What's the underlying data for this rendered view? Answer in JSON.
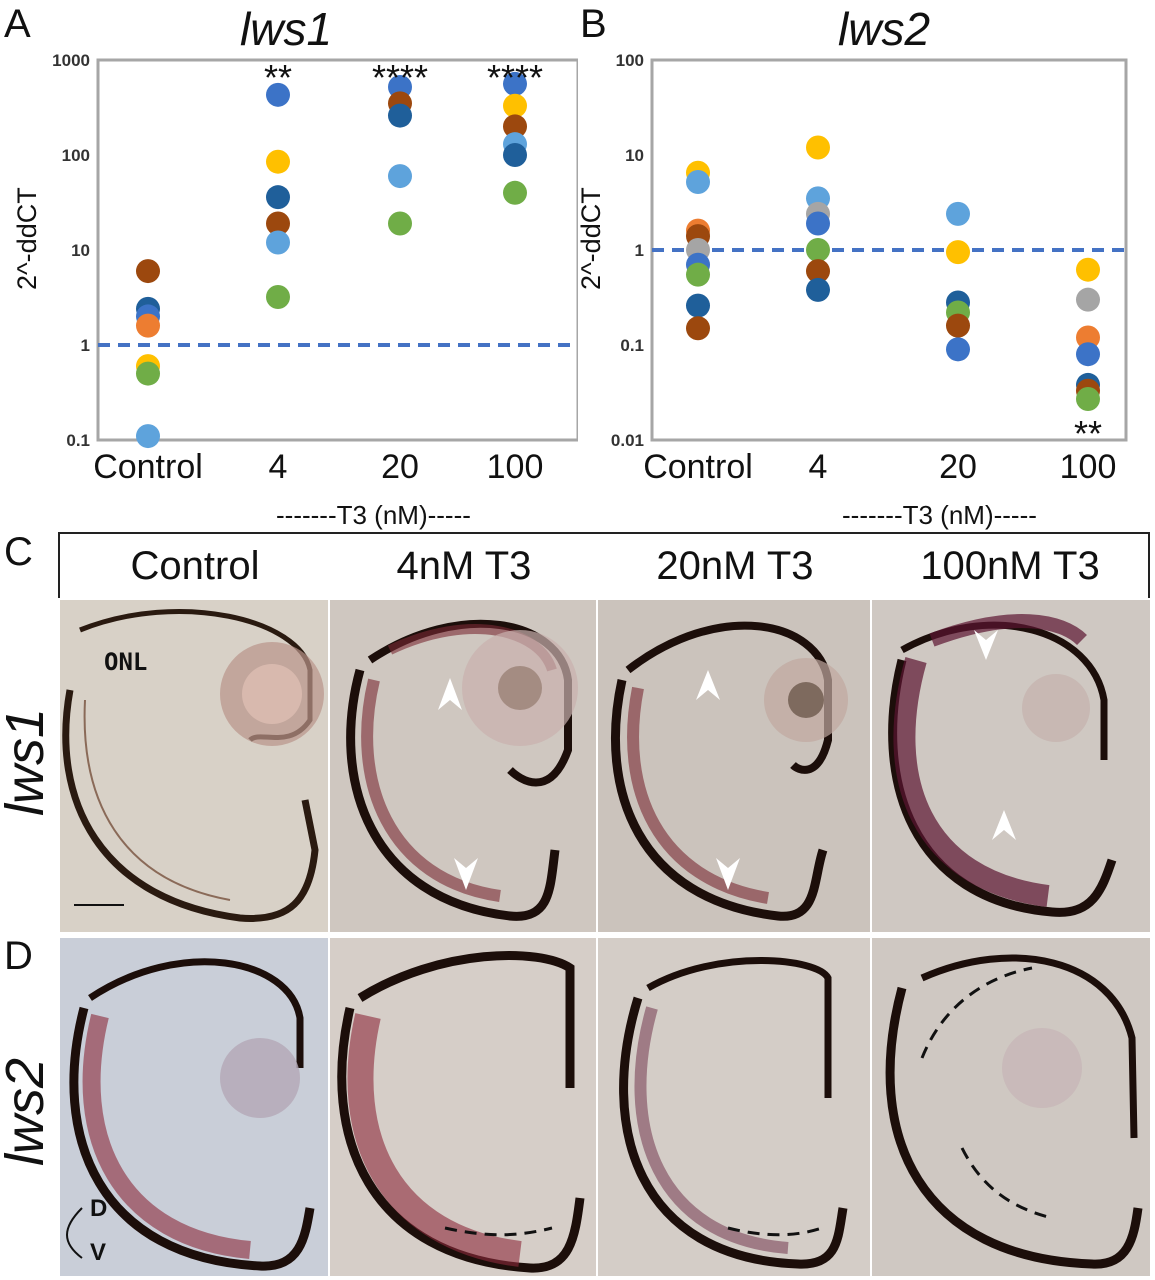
{
  "panels": {
    "A": {
      "letter": "A",
      "title": "lws1"
    },
    "B": {
      "letter": "B",
      "title": "lws2"
    },
    "C": {
      "letter": "C"
    },
    "D": {
      "letter": "D"
    }
  },
  "x_axis_group_label": "-------T3 (nM)-----",
  "column_headers": [
    "Control",
    "4nM T3",
    "20nM T3",
    "100nM T3"
  ],
  "row_labels": {
    "C": "lws1",
    "D": "lws2"
  },
  "image_annotations": {
    "onl": "ONL",
    "dv_dorsal": "D",
    "dv_ventral": "V"
  },
  "colors": {
    "blue_dark": "#1f5f9a",
    "blue_mid": "#3c73c7",
    "blue_light": "#5ea3dc",
    "orange": "#ed7d31",
    "brown": "#9c480e",
    "yellow": "#ffc000",
    "green": "#70ad47",
    "gray": "#a5a5a5",
    "dash": "#4472c4"
  },
  "chart_data": [
    {
      "type": "scatter",
      "title": "lws1",
      "ylabel": "2^-ddCT",
      "xlabel": "-------T3 (nM)-----",
      "yscale": "log",
      "ylim": [
        0.1,
        1000
      ],
      "yticks": [
        "1000",
        "100",
        "10",
        "1",
        "0.1"
      ],
      "categories": [
        "Control",
        "4",
        "20",
        "100"
      ],
      "reference_line": 1,
      "significance": [
        "",
        "**",
        "****",
        "****"
      ],
      "points": [
        {
          "x": "Control",
          "y": 6,
          "color": "#9c480e"
        },
        {
          "x": "Control",
          "y": 2.4,
          "color": "#1f5f9a"
        },
        {
          "x": "Control",
          "y": 2.0,
          "color": "#3c73c7"
        },
        {
          "x": "Control",
          "y": 1.6,
          "color": "#ed7d31"
        },
        {
          "x": "Control",
          "y": 0.6,
          "color": "#ffc000"
        },
        {
          "x": "Control",
          "y": 0.5,
          "color": "#70ad47"
        },
        {
          "x": "Control",
          "y": 0.11,
          "color": "#5ea3dc"
        },
        {
          "x": "4",
          "y": 430,
          "color": "#3c73c7"
        },
        {
          "x": "4",
          "y": 85,
          "color": "#ffc000"
        },
        {
          "x": "4",
          "y": 36,
          "color": "#1f5f9a"
        },
        {
          "x": "4",
          "y": 19,
          "color": "#9c480e"
        },
        {
          "x": "4",
          "y": 12,
          "color": "#5ea3dc"
        },
        {
          "x": "4",
          "y": 3.2,
          "color": "#70ad47"
        },
        {
          "x": "20",
          "y": 520,
          "color": "#3c73c7"
        },
        {
          "x": "20",
          "y": 350,
          "color": "#9c480e"
        },
        {
          "x": "20",
          "y": 260,
          "color": "#1f5f9a"
        },
        {
          "x": "20",
          "y": 60,
          "color": "#5ea3dc"
        },
        {
          "x": "20",
          "y": 19,
          "color": "#70ad47"
        },
        {
          "x": "100",
          "y": 560,
          "color": "#3c73c7"
        },
        {
          "x": "100",
          "y": 330,
          "color": "#ffc000"
        },
        {
          "x": "100",
          "y": 200,
          "color": "#9c480e"
        },
        {
          "x": "100",
          "y": 130,
          "color": "#5ea3dc"
        },
        {
          "x": "100",
          "y": 100,
          "color": "#1f5f9a"
        },
        {
          "x": "100",
          "y": 40,
          "color": "#70ad47"
        }
      ]
    },
    {
      "type": "scatter",
      "title": "lws2",
      "ylabel": "2^-ddCT",
      "xlabel": "-------T3 (nM)-----",
      "yscale": "log",
      "ylim": [
        0.01,
        100
      ],
      "yticks": [
        "100",
        "10",
        "1",
        "0.1",
        "0.01"
      ],
      "categories": [
        "Control",
        "4",
        "20",
        "100"
      ],
      "reference_line": 1,
      "significance": [
        "",
        "",
        "",
        "**"
      ],
      "points": [
        {
          "x": "Control",
          "y": 6.5,
          "color": "#ffc000"
        },
        {
          "x": "Control",
          "y": 5.2,
          "color": "#5ea3dc"
        },
        {
          "x": "Control",
          "y": 1.6,
          "color": "#ed7d31"
        },
        {
          "x": "Control",
          "y": 1.4,
          "color": "#9c480e"
        },
        {
          "x": "Control",
          "y": 1.0,
          "color": "#a5a5a5"
        },
        {
          "x": "Control",
          "y": 0.7,
          "color": "#3c73c7"
        },
        {
          "x": "Control",
          "y": 0.55,
          "color": "#70ad47"
        },
        {
          "x": "Control",
          "y": 0.26,
          "color": "#1f5f9a"
        },
        {
          "x": "Control",
          "y": 0.15,
          "color": "#9c480e"
        },
        {
          "x": "4",
          "y": 12,
          "color": "#ffc000"
        },
        {
          "x": "4",
          "y": 3.5,
          "color": "#5ea3dc"
        },
        {
          "x": "4",
          "y": 2.4,
          "color": "#a5a5a5"
        },
        {
          "x": "4",
          "y": 1.9,
          "color": "#3c73c7"
        },
        {
          "x": "4",
          "y": 1.0,
          "color": "#70ad47"
        },
        {
          "x": "4",
          "y": 0.6,
          "color": "#9c480e"
        },
        {
          "x": "4",
          "y": 0.38,
          "color": "#1f5f9a"
        },
        {
          "x": "20",
          "y": 2.4,
          "color": "#5ea3dc"
        },
        {
          "x": "20",
          "y": 0.95,
          "color": "#ffc000"
        },
        {
          "x": "20",
          "y": 0.28,
          "color": "#1f5f9a"
        },
        {
          "x": "20",
          "y": 0.22,
          "color": "#70ad47"
        },
        {
          "x": "20",
          "y": 0.16,
          "color": "#9c480e"
        },
        {
          "x": "20",
          "y": 0.09,
          "color": "#3c73c7"
        },
        {
          "x": "100",
          "y": 0.62,
          "color": "#ffc000"
        },
        {
          "x": "100",
          "y": 0.3,
          "color": "#a5a5a5"
        },
        {
          "x": "100",
          "y": 0.12,
          "color": "#ed7d31"
        },
        {
          "x": "100",
          "y": 0.08,
          "color": "#3c73c7"
        },
        {
          "x": "100",
          "y": 0.038,
          "color": "#1f5f9a"
        },
        {
          "x": "100",
          "y": 0.033,
          "color": "#9c480e"
        },
        {
          "x": "100",
          "y": 0.027,
          "color": "#70ad47"
        }
      ]
    }
  ]
}
